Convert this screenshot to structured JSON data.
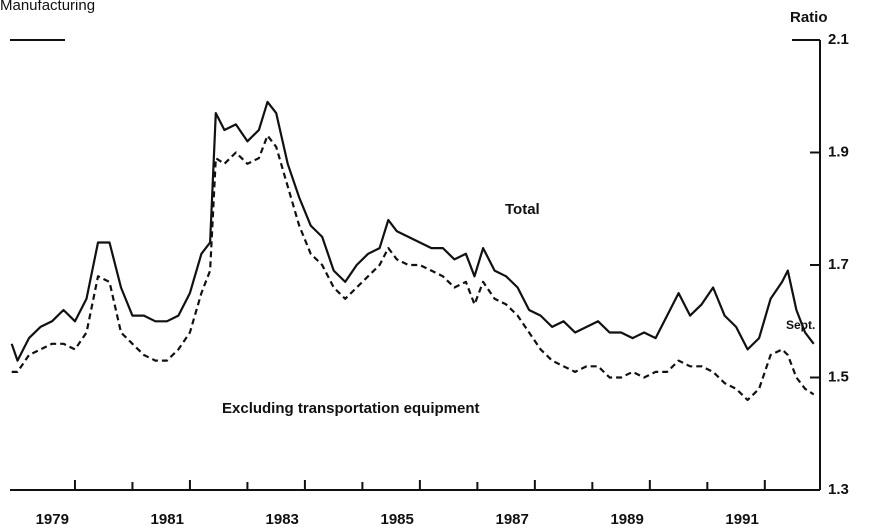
{
  "chart_data": {
    "type": "line",
    "title": "Manufacturing",
    "y_axis_label": "Ratio",
    "annotations": [
      "Total",
      "Excluding transportation equipment",
      "Sept."
    ],
    "x": [
      1977.9,
      1978.0,
      1978.2,
      1978.4,
      1978.6,
      1978.8,
      1979.0,
      1979.2,
      1979.4,
      1979.6,
      1979.8,
      1980.0,
      1980.2,
      1980.4,
      1980.6,
      1980.8,
      1981.0,
      1981.2,
      1981.35,
      1981.45,
      1981.6,
      1981.8,
      1982.0,
      1982.2,
      1982.35,
      1982.5,
      1982.7,
      1982.9,
      1983.1,
      1983.3,
      1983.5,
      1983.7,
      1983.9,
      1984.1,
      1984.3,
      1984.45,
      1984.6,
      1984.8,
      1985.0,
      1985.2,
      1985.4,
      1985.6,
      1985.8,
      1985.95,
      1986.1,
      1986.3,
      1986.5,
      1986.7,
      1986.9,
      1987.1,
      1987.3,
      1987.5,
      1987.7,
      1987.9,
      1988.1,
      1988.3,
      1988.5,
      1988.7,
      1988.9,
      1989.1,
      1989.3,
      1989.5,
      1989.7,
      1989.9,
      1990.1,
      1990.3,
      1990.5,
      1990.7,
      1990.9,
      1991.1,
      1991.3,
      1991.4,
      1991.55,
      1991.7,
      1991.85
    ],
    "series": [
      {
        "name": "Total",
        "color": "#111111",
        "dash": false,
        "values": [
          1.56,
          1.53,
          1.57,
          1.59,
          1.6,
          1.62,
          1.6,
          1.64,
          1.74,
          1.74,
          1.66,
          1.61,
          1.61,
          1.6,
          1.6,
          1.61,
          1.65,
          1.72,
          1.74,
          1.97,
          1.94,
          1.95,
          1.92,
          1.94,
          1.99,
          1.97,
          1.88,
          1.82,
          1.77,
          1.75,
          1.69,
          1.67,
          1.7,
          1.72,
          1.73,
          1.78,
          1.76,
          1.75,
          1.74,
          1.73,
          1.73,
          1.71,
          1.72,
          1.68,
          1.73,
          1.69,
          1.68,
          1.66,
          1.62,
          1.61,
          1.59,
          1.6,
          1.58,
          1.59,
          1.6,
          1.58,
          1.58,
          1.57,
          1.58,
          1.57,
          1.61,
          1.65,
          1.61,
          1.63,
          1.66,
          1.61,
          1.59,
          1.55,
          1.57,
          1.64,
          1.67,
          1.69,
          1.62,
          1.58,
          1.56
        ]
      },
      {
        "name": "Excluding transportation equipment",
        "color": "#111111",
        "dash": true,
        "values": [
          1.51,
          1.51,
          1.54,
          1.55,
          1.56,
          1.56,
          1.55,
          1.58,
          1.68,
          1.67,
          1.58,
          1.56,
          1.54,
          1.53,
          1.53,
          1.55,
          1.58,
          1.65,
          1.69,
          1.89,
          1.88,
          1.9,
          1.88,
          1.89,
          1.93,
          1.91,
          1.84,
          1.77,
          1.72,
          1.7,
          1.66,
          1.64,
          1.66,
          1.68,
          1.7,
          1.73,
          1.71,
          1.7,
          1.7,
          1.69,
          1.68,
          1.66,
          1.67,
          1.63,
          1.67,
          1.64,
          1.63,
          1.61,
          1.58,
          1.55,
          1.53,
          1.52,
          1.51,
          1.52,
          1.52,
          1.5,
          1.5,
          1.51,
          1.5,
          1.51,
          1.51,
          1.53,
          1.52,
          1.52,
          1.51,
          1.49,
          1.48,
          1.46,
          1.48,
          1.54,
          1.55,
          1.54,
          1.5,
          1.48,
          1.47
        ]
      }
    ],
    "xlim": [
      1977.87,
      1991.96
    ],
    "xticks": [
      1979,
      1981,
      1983,
      1985,
      1987,
      1989,
      1991
    ],
    "xminor_ticks": [
      1980,
      1982,
      1984,
      1986,
      1988,
      1990
    ],
    "ylim": [
      1.3,
      2.1
    ],
    "yticks": [
      1.3,
      1.5,
      1.7,
      1.9,
      2.1
    ],
    "y_axis_side": "right",
    "grid": false
  }
}
